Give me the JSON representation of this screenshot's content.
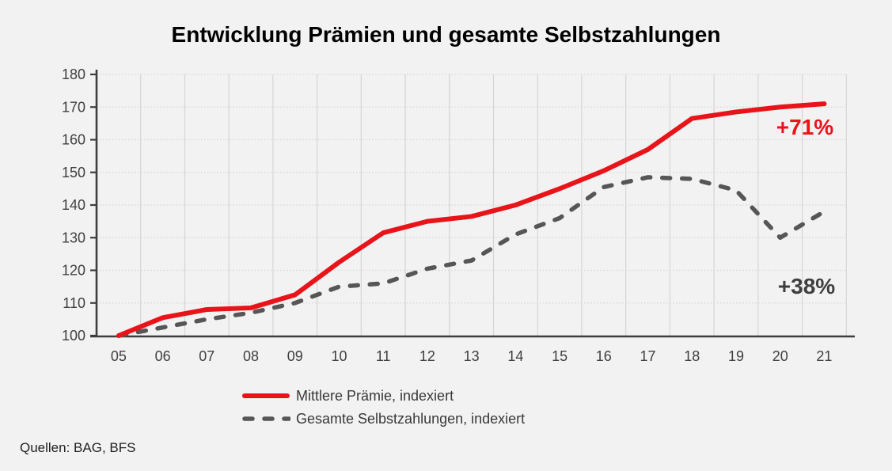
{
  "title": "Entwicklung Prämien und gesamte Selbstzahlungen",
  "source": "Quellen: BAG, BFS",
  "annotations": [
    {
      "text": "+71%",
      "color": "#e8141a"
    },
    {
      "text": "+38%",
      "color": "#3f3f3f"
    }
  ],
  "legend": {
    "items": [
      {
        "label": "Mittlere Prämie, indexiert"
      },
      {
        "label": "Gesamte Selbstzahlungen, indexiert"
      }
    ]
  },
  "chart_data": {
    "type": "line",
    "title": "Entwicklung Prämien und gesamte Selbstzahlungen",
    "categories": [
      "05",
      "06",
      "07",
      "08",
      "09",
      "10",
      "11",
      "12",
      "13",
      "14",
      "15",
      "16",
      "17",
      "18",
      "19",
      "20",
      "21"
    ],
    "series": [
      {
        "name": "Mittlere Prämie, indexiert",
        "color": "#e8141a",
        "style": "solid",
        "values": [
          100,
          105.5,
          108,
          108.5,
          112.5,
          122.5,
          131.5,
          135,
          136.5,
          140,
          145,
          150.5,
          157,
          166.5,
          168.5,
          170,
          171
        ],
        "end_label": "+71%"
      },
      {
        "name": "Gesamte Selbstzahlungen, indexiert",
        "color": "#565656",
        "style": "dashed",
        "values": [
          100,
          102.5,
          105,
          107,
          110,
          115,
          116,
          120.5,
          123,
          131,
          136,
          145.5,
          148.5,
          148,
          144.5,
          130,
          138
        ],
        "end_label": "+38%"
      }
    ],
    "xlabel": "",
    "ylabel": "",
    "ylim": [
      100,
      180
    ],
    "ytick_step": 10,
    "grid": true,
    "legend_position": "bottom-left",
    "axis_color": "#3d3d3d",
    "grid_color": "#d5d5d5"
  }
}
